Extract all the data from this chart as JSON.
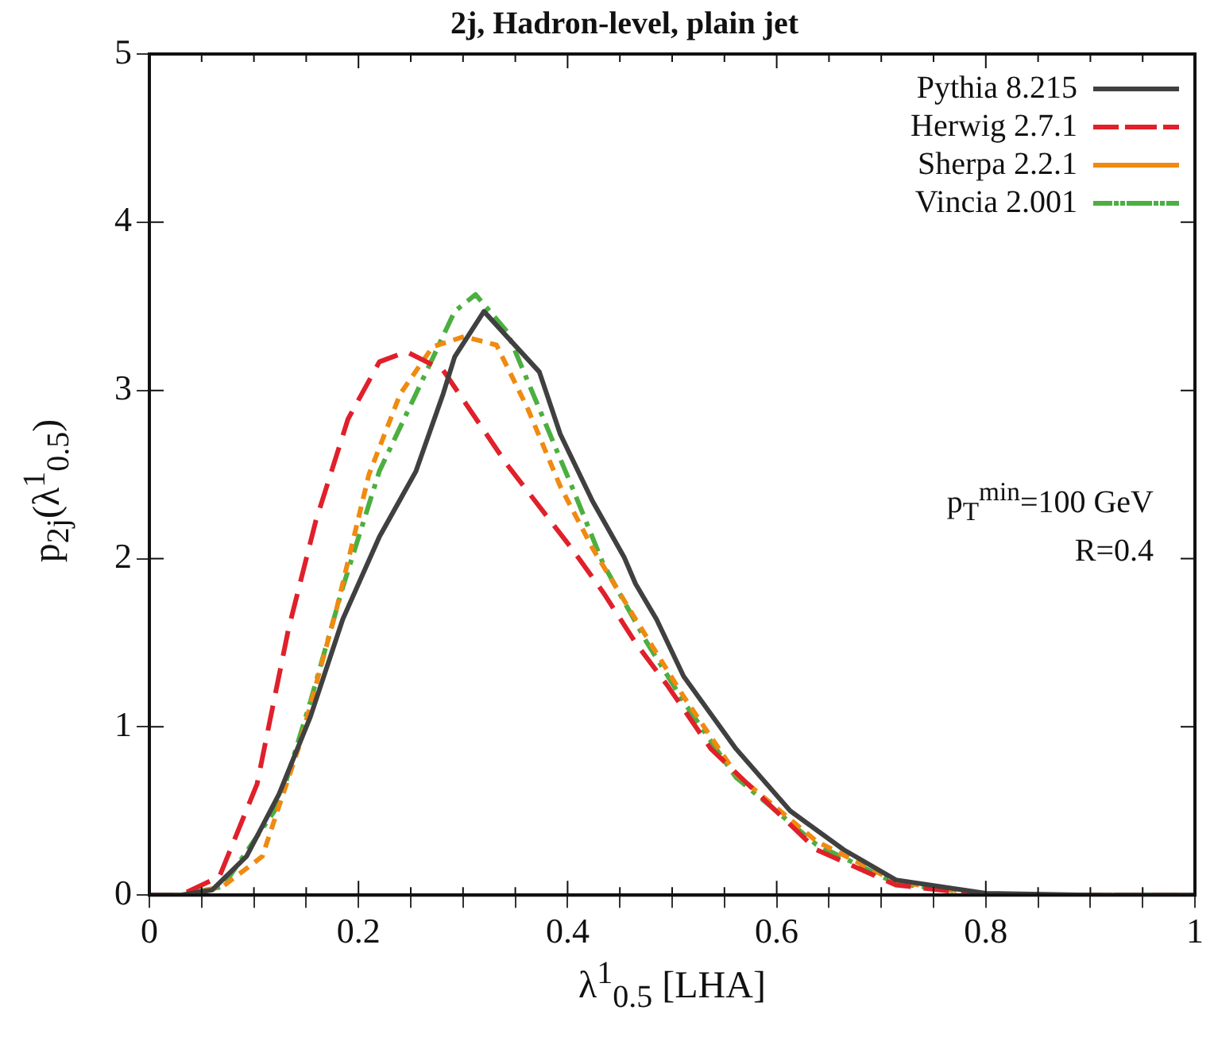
{
  "chart_data": {
    "type": "line",
    "title": "2j, Hadron-level, plain jet",
    "xlabel": "λ$^{1}$$_{0.5}$ [LHA]",
    "ylabel": "p$_{2j}$(λ$^{1}$$_{0.5}$)",
    "xlim": [
      0,
      1
    ],
    "ylim": [
      0,
      5
    ],
    "xticks": [
      0,
      {
        "value": 0.05,
        "label": null
      },
      {
        "value": 0.1,
        "label": null
      },
      {
        "value": 0.15,
        "label": null
      },
      0.2,
      {
        "value": 0.25,
        "label": null
      },
      {
        "value": 0.3,
        "label": null
      },
      {
        "value": 0.35,
        "label": null
      },
      0.4,
      {
        "value": 0.45,
        "label": null
      },
      {
        "value": 0.5,
        "label": null
      },
      {
        "value": 0.55,
        "label": null
      },
      0.6,
      {
        "value": 0.65,
        "label": null
      },
      {
        "value": 0.7,
        "label": null
      },
      {
        "value": 0.75,
        "label": null
      },
      0.8,
      {
        "value": 0.85,
        "label": null
      },
      {
        "value": 0.9,
        "label": null
      },
      {
        "value": 0.95,
        "label": null
      },
      1
    ],
    "yticks": [
      0,
      1,
      2,
      3,
      4,
      5
    ],
    "grid": false,
    "legend": "top right",
    "marker": "none",
    "annotations": [
      "p$_{T}$$^{min}$=100 GeV",
      "R=0.4"
    ],
    "series": [
      {
        "name": "Pythia 8.215",
        "color": "#404040",
        "line_style": "solid",
        "x": [
          0,
          0.03,
          0.06,
          0.093,
          0.124,
          0.154,
          0.185,
          0.22,
          0.255,
          0.281,
          0.292,
          0.32,
          0.342,
          0.373,
          0.393,
          0.424,
          0.454,
          0.465,
          0.485,
          0.511,
          0.561,
          0.613,
          0.664,
          0.714,
          0.8,
          0.9,
          1
        ],
        "values": [
          0,
          0,
          0.03,
          0.23,
          0.6,
          1.06,
          1.64,
          2.13,
          2.52,
          2.98,
          3.2,
          3.47,
          3.32,
          3.11,
          2.74,
          2.34,
          2.01,
          1.85,
          1.64,
          1.3,
          0.87,
          0.5,
          0.27,
          0.09,
          0.01,
          0,
          0
        ]
      },
      {
        "name": "Herwig 2.7.1",
        "color": "#e0202a",
        "line_style": "dashed",
        "x": [
          0,
          0.03,
          0.067,
          0.103,
          0.133,
          0.159,
          0.19,
          0.22,
          0.246,
          0.281,
          0.342,
          0.404,
          0.434,
          0.465,
          0.495,
          0.537,
          0.638,
          0.714,
          0.8,
          0.9,
          1
        ],
        "values": [
          0,
          0,
          0.11,
          0.66,
          1.58,
          2.22,
          2.83,
          3.17,
          3.23,
          3.12,
          2.56,
          2.06,
          1.8,
          1.5,
          1.25,
          0.87,
          0.27,
          0.06,
          0,
          0,
          0
        ]
      },
      {
        "name": "Sherpa 2.2.1",
        "color": "#f08a10",
        "line_style": "dotted",
        "x": [
          0,
          0.03,
          0.07,
          0.108,
          0.144,
          0.179,
          0.21,
          0.24,
          0.271,
          0.301,
          0.332,
          0.362,
          0.393,
          0.424,
          0.465,
          0.511,
          0.561,
          0.638,
          0.714,
          0.8,
          0.9,
          1
        ],
        "values": [
          0,
          0,
          0.05,
          0.23,
          0.9,
          1.7,
          2.5,
          2.98,
          3.26,
          3.32,
          3.27,
          2.89,
          2.43,
          2.06,
          1.64,
          1.18,
          0.72,
          0.32,
          0.08,
          0,
          0,
          0
        ]
      },
      {
        "name": "Vincia 2.001",
        "color": "#4caf40",
        "line_style": "dashdot",
        "x": [
          0,
          0.03,
          0.07,
          0.124,
          0.154,
          0.185,
          0.22,
          0.255,
          0.292,
          0.312,
          0.342,
          0.373,
          0.404,
          0.434,
          0.475,
          0.511,
          0.561,
          0.638,
          0.714,
          0.8,
          0.9,
          1
        ],
        "values": [
          0,
          0,
          0.05,
          0.54,
          1.15,
          1.83,
          2.52,
          2.98,
          3.47,
          3.57,
          3.35,
          2.89,
          2.43,
          1.97,
          1.51,
          1.15,
          0.7,
          0.3,
          0.07,
          0,
          0,
          0
        ]
      }
    ]
  }
}
